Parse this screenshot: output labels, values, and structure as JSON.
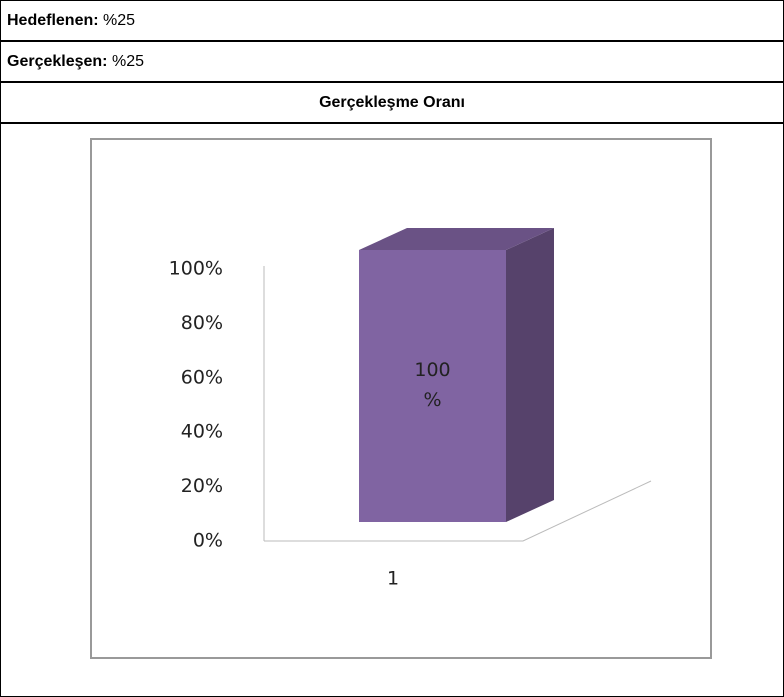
{
  "rows": [
    {
      "label": "Hedeflenen:",
      "value": "%25"
    },
    {
      "label": "Gerçekleşen:",
      "value": "%25"
    }
  ],
  "section_title": "Gerçekleşme Oranı",
  "chart_data": {
    "type": "bar3d",
    "categories": [
      "1"
    ],
    "values": [
      100
    ],
    "value_labels": [
      "100 %"
    ],
    "color": "#8064a2",
    "ylim": [
      0,
      100
    ],
    "yticks": [
      {
        "value": 0,
        "label": "0%"
      },
      {
        "value": 20,
        "label": "20%"
      },
      {
        "value": 40,
        "label": "40%"
      },
      {
        "value": 60,
        "label": "60%"
      },
      {
        "value": 80,
        "label": "80%"
      },
      {
        "value": 100,
        "label": "100%"
      }
    ]
  }
}
